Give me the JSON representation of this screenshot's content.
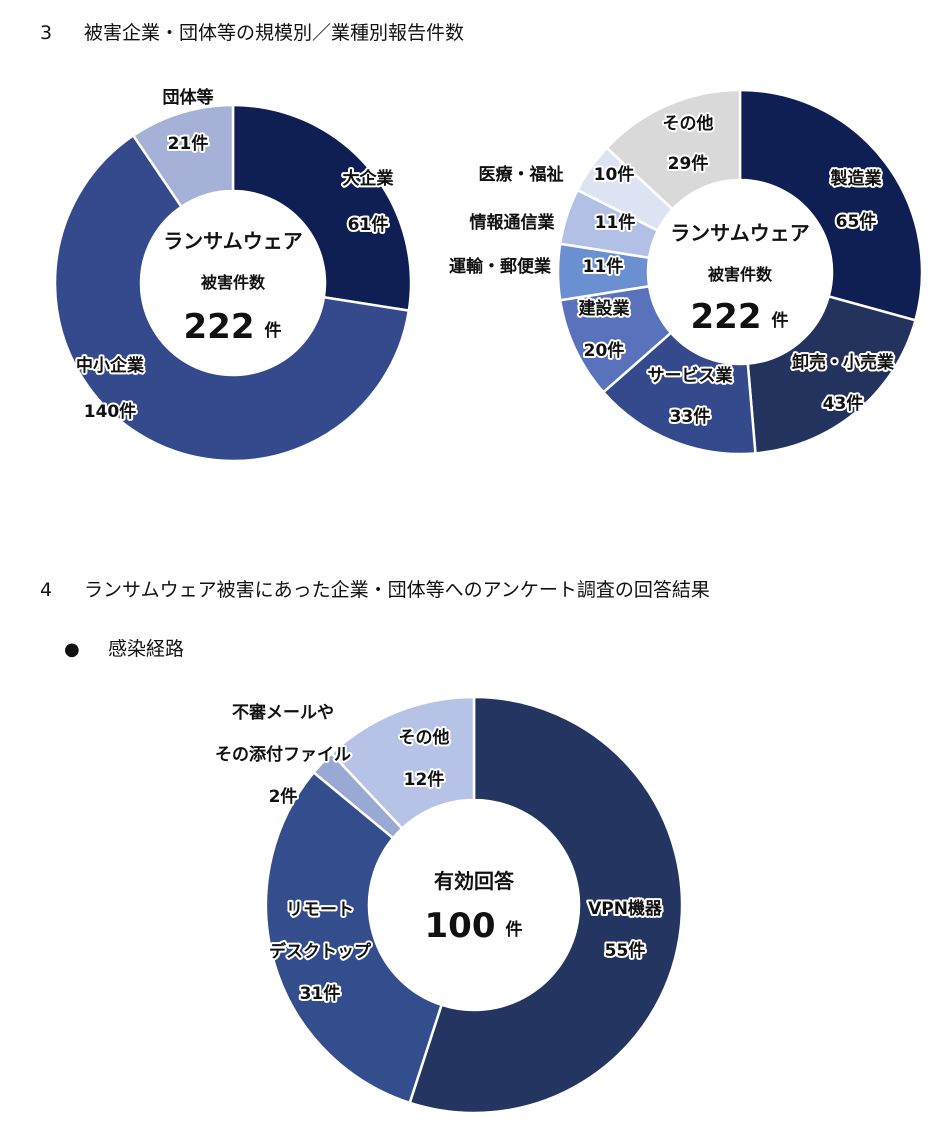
{
  "section3": {
    "number": "3",
    "title": "被害企業・団体等の規模別／業種別報告件数"
  },
  "section4": {
    "number": "4",
    "title": "ランサムウェア被害にあった企業・団体等へのアンケート調査の回答結果",
    "bullet": "●",
    "subtitle": "感染経路"
  },
  "chart_data": [
    {
      "type": "pie",
      "variant": "donut",
      "center_text": [
        "ランサムウェア",
        "被害件数"
      ],
      "center_total": "222",
      "center_unit": "件",
      "slices": [
        {
          "label": [
            "大企業"
          ],
          "value_label": "61件",
          "value": 61,
          "color": "#0f1f54"
        },
        {
          "label": [
            "中小企業"
          ],
          "value_label": "140件",
          "value": 140,
          "color": "#354a8c"
        },
        {
          "label": [
            "団体等"
          ],
          "value_label": "21件",
          "value": 21,
          "color": "#a6b1d8"
        }
      ]
    },
    {
      "type": "pie",
      "variant": "donut",
      "center_text": [
        "ランサムウェア",
        "被害件数"
      ],
      "center_total": "222",
      "center_unit": "件",
      "slices": [
        {
          "label": [
            "製造業"
          ],
          "value_label": "65件",
          "value": 65,
          "color": "#0f1f54"
        },
        {
          "label": [
            "卸売・小売業"
          ],
          "value_label": "43件",
          "value": 43,
          "color": "#24325e"
        },
        {
          "label": [
            "サービス業"
          ],
          "value_label": "33件",
          "value": 33,
          "color": "#354a8c"
        },
        {
          "label": [
            "建設業"
          ],
          "value_label": "20件",
          "value": 20,
          "color": "#5a72bb"
        },
        {
          "label": [
            "運輸・郵便業"
          ],
          "value_label": "11件",
          "value": 11,
          "color": "#6b90d2"
        },
        {
          "label": [
            "情報通信業"
          ],
          "value_label": "11件",
          "value": 11,
          "color": "#b2c0e6"
        },
        {
          "label": [
            "医療・福祉"
          ],
          "value_label": "10件",
          "value": 10,
          "color": "#dde3f3"
        },
        {
          "label": [
            "その他"
          ],
          "value_label": "29件",
          "value": 29,
          "color": "#d9d9d9"
        }
      ]
    },
    {
      "type": "pie",
      "variant": "donut",
      "center_text": [
        "有効回答"
      ],
      "center_total": "100",
      "center_unit": "件",
      "slices": [
        {
          "label": [
            "VPN機器"
          ],
          "value_label": "55件",
          "value": 55,
          "color": "#233560"
        },
        {
          "label": [
            "リモート",
            "デスクトップ"
          ],
          "value_label": "31件",
          "value": 31,
          "color": "#344d8c"
        },
        {
          "label": [
            "不審メールや",
            "その添付ファイル"
          ],
          "value_label": "2件",
          "value": 2,
          "color": "#9aa9d3"
        },
        {
          "label": [
            "その他"
          ],
          "value_label": "12件",
          "value": 12,
          "color": "#b6c3e6"
        }
      ]
    }
  ]
}
